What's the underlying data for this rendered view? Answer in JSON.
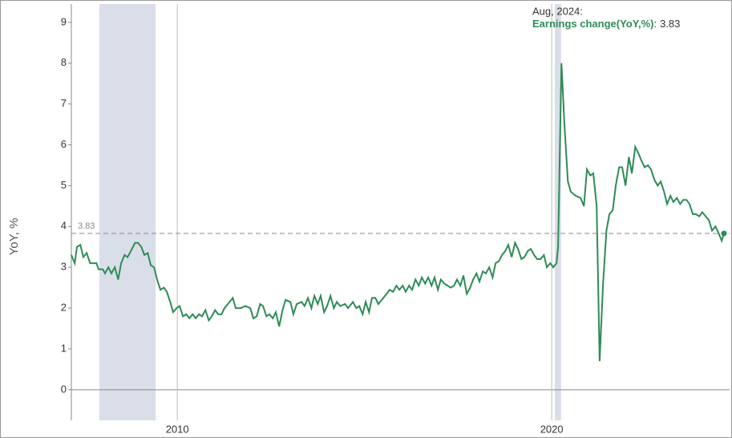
{
  "chart_data": {
    "type": "line",
    "y_label": "YoY, %",
    "xlim": [
      2007.17,
      2024.75
    ],
    "ylim": [
      -0.75,
      9.45
    ],
    "xticks": [
      2010,
      2020
    ],
    "yticks": [
      0,
      1,
      2,
      3,
      4,
      5,
      6,
      7,
      8,
      9
    ],
    "recessions": [
      [
        2007.92,
        2009.42
      ],
      [
        2020.08,
        2020.25
      ]
    ],
    "reference_line": {
      "value": 3.83
    },
    "tooltip": {
      "date": "Aug, 2024:",
      "series_label": "Earnings change(YoY,%)",
      "separator": ":",
      "value": 3.83
    },
    "series": [
      {
        "name": "Earnings change(YoY,%)",
        "color": "#2e8b57",
        "x": [
          2007.17,
          2007.26,
          2007.32,
          2007.41,
          2007.49,
          2007.58,
          2007.67,
          2007.84,
          2007.9,
          2008.01,
          2008.07,
          2008.16,
          2008.24,
          2008.33,
          2008.42,
          2008.5,
          2008.59,
          2008.67,
          2008.76,
          2008.87,
          2008.95,
          2009.04,
          2009.12,
          2009.21,
          2009.29,
          2009.38,
          2009.46,
          2009.55,
          2009.64,
          2009.72,
          2009.81,
          2009.89,
          2009.98,
          2010.06,
          2010.15,
          2010.24,
          2010.32,
          2010.41,
          2010.49,
          2010.58,
          2010.66,
          2010.75,
          2010.84,
          2010.92,
          2011.01,
          2011.09,
          2011.18,
          2011.26,
          2011.35,
          2011.48,
          2011.56,
          2011.69,
          2011.82,
          2011.95,
          2012.03,
          2012.12,
          2012.21,
          2012.29,
          2012.38,
          2012.46,
          2012.55,
          2012.63,
          2012.72,
          2012.81,
          2012.89,
          2013.02,
          2013.1,
          2013.19,
          2013.32,
          2013.4,
          2013.49,
          2013.58,
          2013.66,
          2013.75,
          2013.83,
          2013.92,
          2014.0,
          2014.09,
          2014.18,
          2014.26,
          2014.35,
          2014.48,
          2014.56,
          2014.69,
          2014.78,
          2014.86,
          2014.95,
          2015.03,
          2015.12,
          2015.2,
          2015.29,
          2015.37,
          2015.46,
          2015.59,
          2015.67,
          2015.76,
          2015.85,
          2015.93,
          2016.02,
          2016.1,
          2016.19,
          2016.27,
          2016.36,
          2016.45,
          2016.53,
          2016.62,
          2016.7,
          2016.79,
          2016.87,
          2016.96,
          2017.04,
          2017.13,
          2017.22,
          2017.3,
          2017.39,
          2017.47,
          2017.56,
          2017.64,
          2017.73,
          2017.82,
          2017.9,
          2017.99,
          2018.07,
          2018.16,
          2018.24,
          2018.33,
          2018.42,
          2018.5,
          2018.59,
          2018.67,
          2018.76,
          2018.84,
          2018.93,
          2019.02,
          2019.1,
          2019.19,
          2019.27,
          2019.36,
          2019.44,
          2019.53,
          2019.61,
          2019.7,
          2019.79,
          2019.87,
          2019.96,
          2020.04,
          2020.13,
          2020.17,
          2020.26,
          2020.34,
          2020.43,
          2020.51,
          2020.64,
          2020.77,
          2020.86,
          2020.94,
          2021.03,
          2021.11,
          2021.2,
          2021.28,
          2021.37,
          2021.46,
          2021.54,
          2021.63,
          2021.71,
          2021.8,
          2021.88,
          2021.97,
          2022.06,
          2022.14,
          2022.23,
          2022.31,
          2022.4,
          2022.48,
          2022.57,
          2022.65,
          2022.74,
          2022.83,
          2022.91,
          2023.0,
          2023.08,
          2023.17,
          2023.25,
          2023.34,
          2023.43,
          2023.51,
          2023.6,
          2023.68,
          2023.77,
          2023.85,
          2023.94,
          2024.02,
          2024.11,
          2024.2,
          2024.28,
          2024.37,
          2024.45,
          2024.54,
          2024.6
        ],
        "values": [
          3.3,
          3.1,
          3.5,
          3.55,
          3.25,
          3.35,
          3.1,
          3.1,
          2.95,
          2.95,
          2.85,
          3.0,
          2.85,
          3.0,
          2.7,
          3.1,
          3.3,
          3.25,
          3.4,
          3.6,
          3.6,
          3.5,
          3.3,
          3.35,
          3.05,
          3.0,
          2.7,
          2.45,
          2.5,
          2.4,
          2.15,
          1.9,
          2.0,
          2.05,
          1.8,
          1.85,
          1.75,
          1.85,
          1.75,
          1.85,
          1.8,
          1.95,
          1.7,
          1.8,
          1.95,
          1.85,
          1.85,
          2.0,
          2.1,
          2.25,
          2.0,
          2.0,
          2.05,
          2.0,
          1.75,
          1.8,
          2.1,
          2.05,
          1.8,
          1.85,
          1.75,
          1.9,
          1.55,
          1.95,
          2.2,
          2.15,
          1.85,
          2.1,
          2.15,
          2.05,
          2.25,
          2.0,
          2.3,
          2.1,
          2.3,
          1.9,
          2.05,
          2.3,
          2.0,
          2.15,
          2.05,
          2.1,
          2.0,
          2.15,
          2.0,
          2.05,
          1.85,
          2.15,
          1.9,
          2.25,
          2.25,
          2.1,
          2.2,
          2.35,
          2.45,
          2.4,
          2.55,
          2.45,
          2.55,
          2.4,
          2.55,
          2.45,
          2.7,
          2.55,
          2.75,
          2.6,
          2.75,
          2.55,
          2.75,
          2.45,
          2.7,
          2.6,
          2.55,
          2.5,
          2.55,
          2.7,
          2.55,
          2.8,
          2.35,
          2.5,
          2.7,
          2.85,
          2.65,
          2.9,
          2.85,
          3.0,
          2.75,
          3.1,
          3.15,
          3.3,
          3.4,
          3.55,
          3.25,
          3.6,
          3.45,
          3.2,
          3.25,
          3.4,
          3.45,
          3.3,
          3.2,
          3.2,
          3.3,
          3.0,
          3.1,
          3.0,
          3.1,
          3.5,
          8.0,
          6.5,
          5.1,
          4.85,
          4.75,
          4.7,
          4.5,
          5.4,
          5.25,
          5.3,
          4.5,
          0.7,
          2.6,
          3.9,
          4.3,
          4.4,
          5.0,
          5.45,
          5.45,
          5.0,
          5.7,
          5.3,
          5.95,
          5.8,
          5.6,
          5.45,
          5.5,
          5.4,
          5.15,
          5.0,
          5.1,
          4.85,
          4.55,
          4.75,
          4.6,
          4.7,
          4.55,
          4.65,
          4.65,
          4.55,
          4.3,
          4.3,
          4.25,
          4.35,
          4.25,
          4.15,
          3.9,
          4.0,
          3.85,
          3.65,
          3.83
        ]
      }
    ]
  }
}
